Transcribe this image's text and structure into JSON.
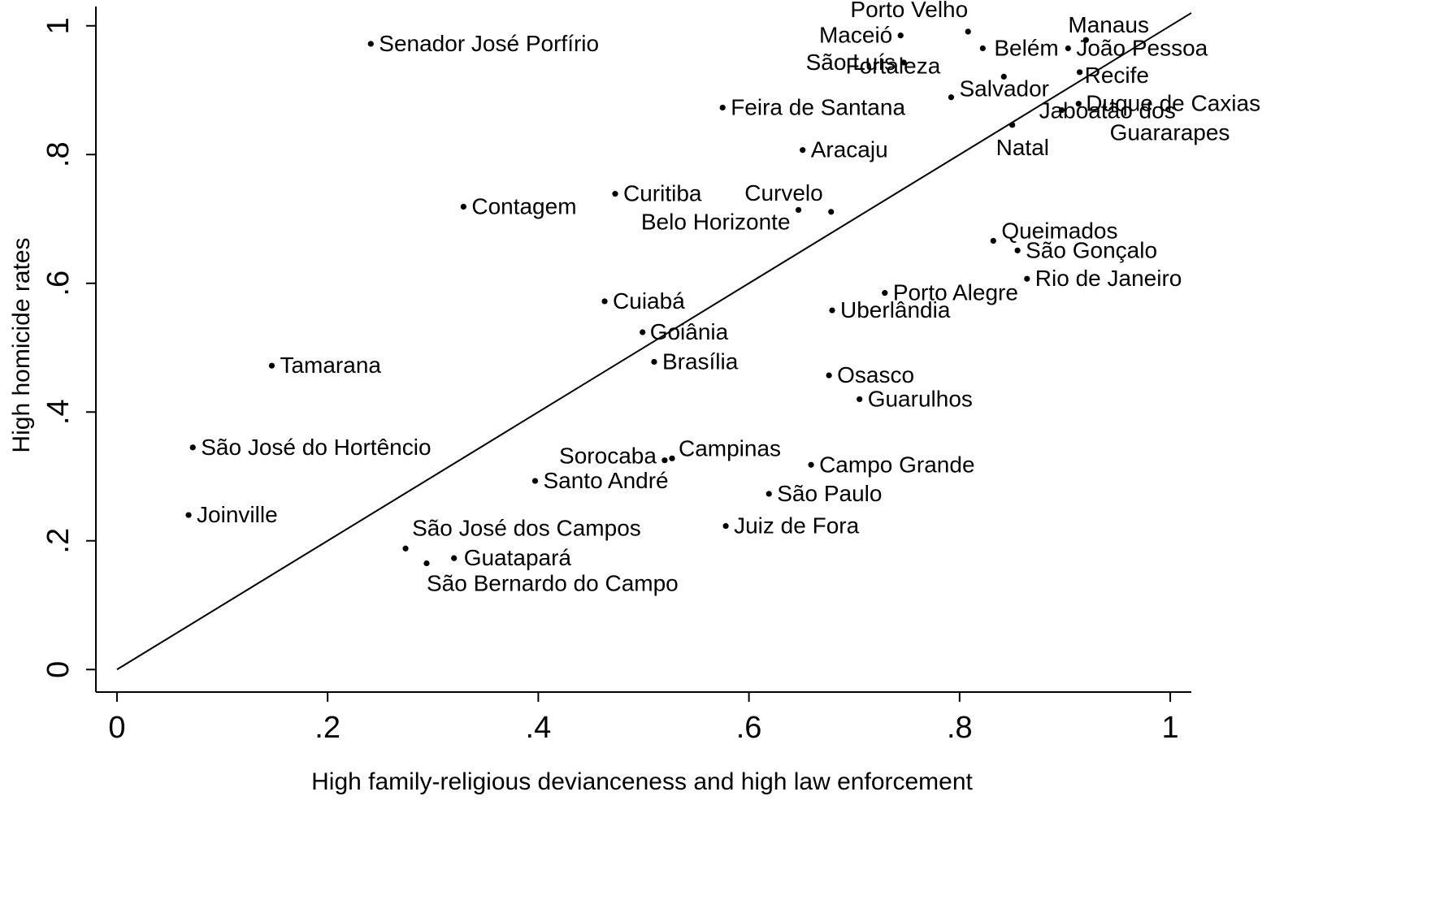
{
  "chart_data": {
    "type": "scatter",
    "xlabel": "High family-religious devianceness and high law enforcement",
    "ylabel": "High homicide rates",
    "xlim": [
      -0.02,
      1.02
    ],
    "ylim": [
      -0.035,
      1.03
    ],
    "x_ticks": [
      0,
      0.2,
      0.4,
      0.6,
      0.8,
      1
    ],
    "x_tick_labels": [
      "0",
      ".2",
      ".4",
      ".6",
      ".8",
      "1"
    ],
    "y_ticks": [
      0,
      0.2,
      0.4,
      0.6,
      0.8,
      1
    ],
    "y_tick_labels": [
      "0",
      ".2",
      ".4",
      ".6",
      ".8",
      "1"
    ],
    "grid": false,
    "legend": "none",
    "reference_line": {
      "x": [
        0,
        1.02
      ],
      "y": [
        0,
        1.02
      ]
    },
    "points": [
      {
        "label": "Senador José Porfírio",
        "x": 0.241,
        "y": 0.972
      },
      {
        "label": "Porto Velho",
        "x": 0.808,
        "y": 0.991
      },
      {
        "label": "Maceió",
        "x": 0.744,
        "y": 0.985
      },
      {
        "label": "Belém",
        "x": 0.822,
        "y": 0.965
      },
      {
        "label": "Manaus",
        "x": 0.92,
        "y": 0.978
      },
      {
        "label": "São Luís",
        "x": 0.747,
        "y": 0.943
      },
      {
        "label": "João Pessoa",
        "x": 0.903,
        "y": 0.965
      },
      {
        "label": "Fortaleza",
        "x": 0.842,
        "y": 0.921
      },
      {
        "label": "Salvador",
        "x": 0.792,
        "y": 0.889
      },
      {
        "label": "Recife",
        "x": 0.914,
        "y": 0.928
      },
      {
        "label": "Duque de Caxias",
        "x": 0.913,
        "y": 0.879
      },
      {
        "label": "Feira de Santana",
        "x": 0.575,
        "y": 0.873
      },
      {
        "label": "Jaboatão dos Guararapes",
        "x": 0.897,
        "y": 0.869
      },
      {
        "label": "Natal",
        "x": 0.85,
        "y": 0.846
      },
      {
        "label": "Aracaju",
        "x": 0.651,
        "y": 0.807
      },
      {
        "label": "Curitiba",
        "x": 0.473,
        "y": 0.739
      },
      {
        "label": "Curvelo",
        "x": 0.678,
        "y": 0.711
      },
      {
        "label": "Belo Horizonte",
        "x": 0.647,
        "y": 0.714
      },
      {
        "label": "Contagem",
        "x": 0.329,
        "y": 0.719
      },
      {
        "label": "Queimados",
        "x": 0.832,
        "y": 0.666
      },
      {
        "label": "São Gonçalo",
        "x": 0.855,
        "y": 0.651
      },
      {
        "label": "Rio de Janeiro",
        "x": 0.864,
        "y": 0.607
      },
      {
        "label": "Porto Alegre",
        "x": 0.729,
        "y": 0.585
      },
      {
        "label": "Uberlândia",
        "x": 0.679,
        "y": 0.558
      },
      {
        "label": "Cuiabá",
        "x": 0.463,
        "y": 0.572
      },
      {
        "label": "Goiânia",
        "x": 0.499,
        "y": 0.524
      },
      {
        "label": "Brasília",
        "x": 0.51,
        "y": 0.478
      },
      {
        "label": "Tamarana",
        "x": 0.147,
        "y": 0.472
      },
      {
        "label": "Osasco",
        "x": 0.676,
        "y": 0.457
      },
      {
        "label": "Guarulhos",
        "x": 0.705,
        "y": 0.42
      },
      {
        "label": "São José do Hortêncio",
        "x": 0.072,
        "y": 0.345
      },
      {
        "label": "Sorocaba",
        "x": 0.52,
        "y": 0.325
      },
      {
        "label": "Campinas",
        "x": 0.527,
        "y": 0.328
      },
      {
        "label": "Campo Grande",
        "x": 0.659,
        "y": 0.318
      },
      {
        "label": "Santo André",
        "x": 0.397,
        "y": 0.293
      },
      {
        "label": "São Paulo",
        "x": 0.619,
        "y": 0.273
      },
      {
        "label": "Joinville",
        "x": 0.068,
        "y": 0.24
      },
      {
        "label": "Juiz de Fora",
        "x": 0.578,
        "y": 0.223
      },
      {
        "label": "São José dos Campos",
        "x": 0.274,
        "y": 0.188
      },
      {
        "label": "Guatapará",
        "x": 0.32,
        "y": 0.173
      },
      {
        "label": "São Bernardo do Campo",
        "x": 0.294,
        "y": 0.165
      }
    ]
  }
}
